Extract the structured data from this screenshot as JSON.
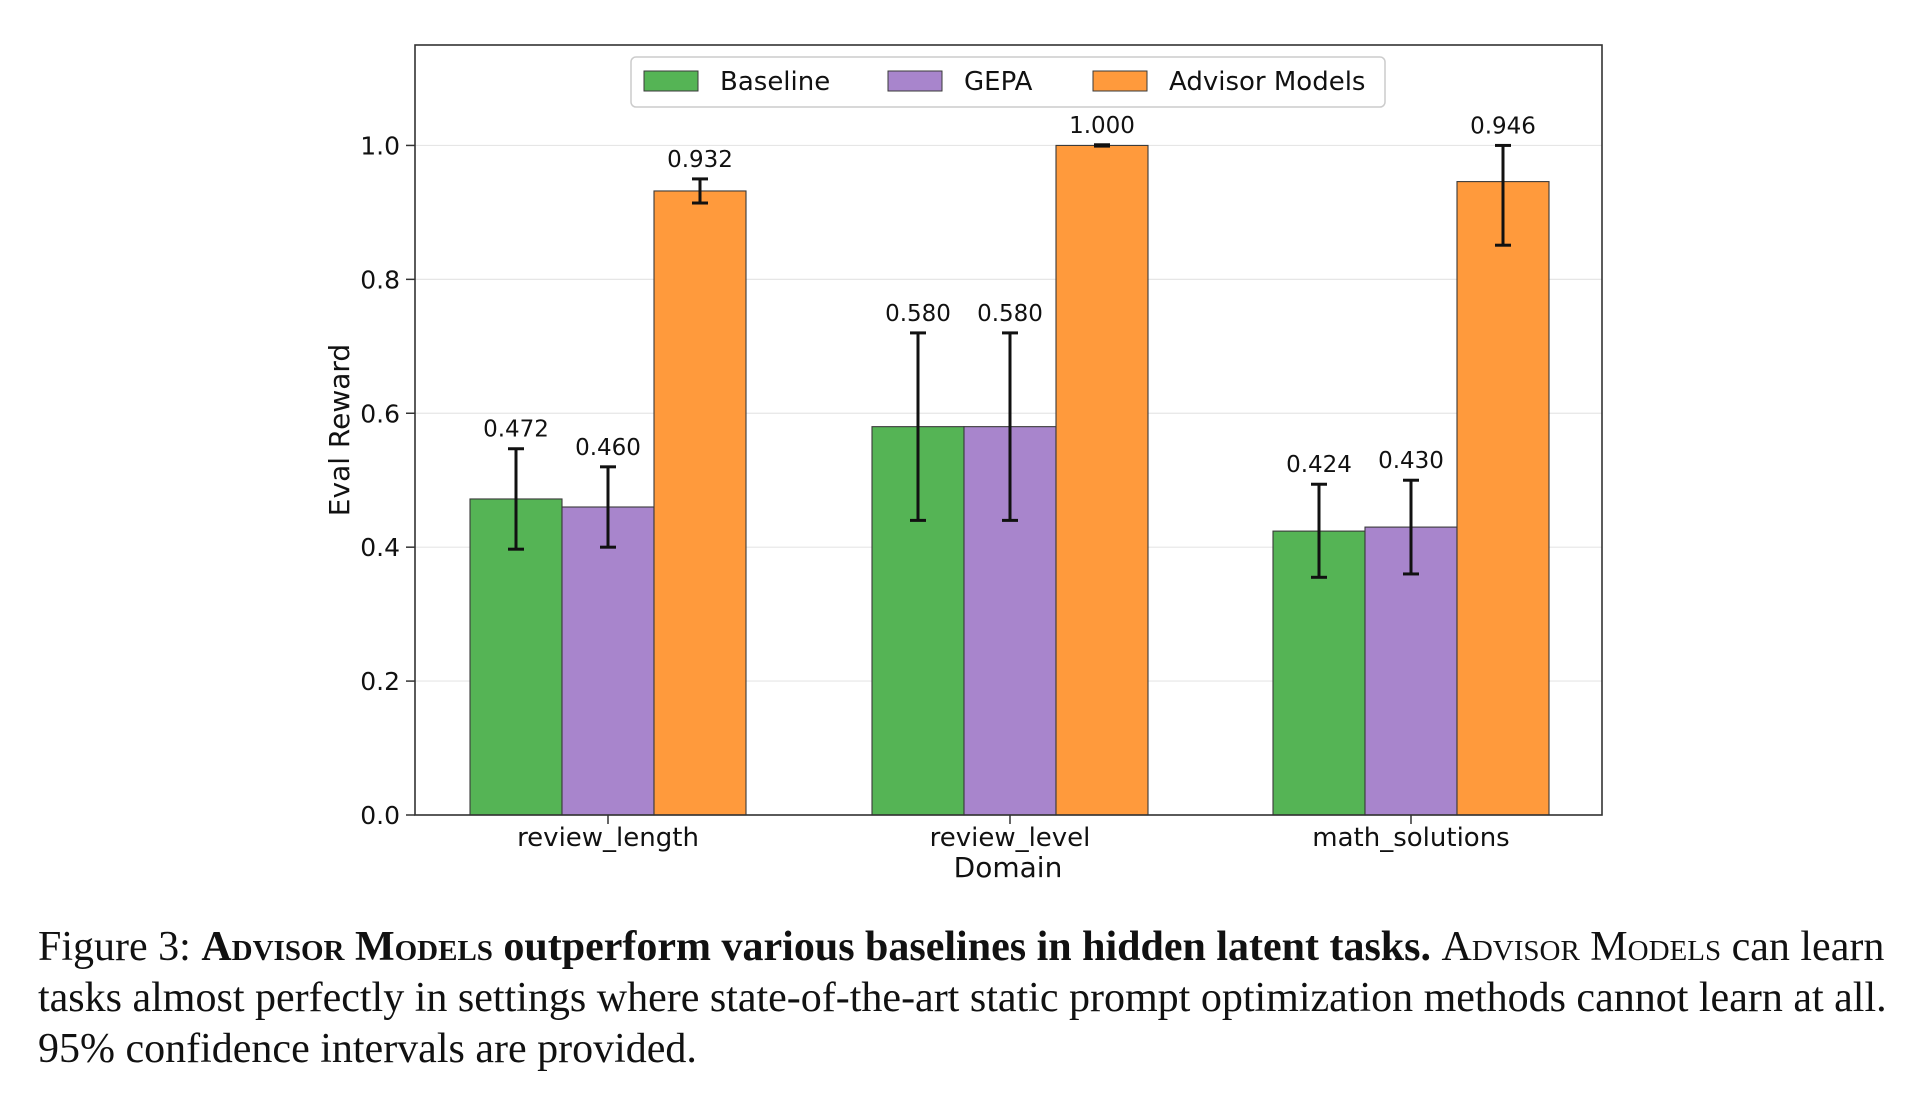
{
  "chart_data": {
    "type": "bar",
    "title": "",
    "xlabel": "Domain",
    "ylabel": "Eval Reward",
    "ylim": [
      0,
      1.15
    ],
    "yticks": [
      "0.0",
      "0.2",
      "0.4",
      "0.6",
      "0.8",
      "1.0"
    ],
    "ytick_values": [
      0,
      0.2,
      0.4,
      0.6,
      0.8,
      1.0
    ],
    "grid": true,
    "legend_position": "top-center",
    "categories": [
      "review_length",
      "review_level",
      "math_solutions"
    ],
    "series": [
      {
        "name": "Baseline",
        "color": "#55b455",
        "values": [
          0.472,
          0.58,
          0.424
        ],
        "labels": [
          "0.472",
          "0.580",
          "0.424"
        ],
        "ci_low": [
          0.397,
          0.44,
          0.355
        ],
        "ci_high": [
          0.547,
          0.72,
          0.494
        ]
      },
      {
        "name": "GEPA",
        "color": "#a885cc",
        "values": [
          0.46,
          0.58,
          0.43
        ],
        "labels": [
          "0.460",
          "0.580",
          "0.430"
        ],
        "ci_low": [
          0.4,
          0.44,
          0.36
        ],
        "ci_high": [
          0.52,
          0.72,
          0.5
        ]
      },
      {
        "name": "Advisor Models",
        "color": "#ff9a3c",
        "values": [
          0.932,
          1.0,
          0.946
        ],
        "labels": [
          "0.932",
          "1.000",
          "0.946"
        ],
        "ci_low": [
          0.914,
          0.999,
          0.851
        ],
        "ci_high": [
          0.95,
          1.001,
          1.0
        ]
      }
    ]
  },
  "caption": {
    "figure_label": "Figure 3:",
    "bold_sc": "Advisor Models",
    "bold_rest": "outperform various baselines in hidden latent tasks.",
    "body_sc": "Advisor Models",
    "body_rest": "can learn tasks almost perfectly in settings where state-of-the-art static prompt optimization methods cannot learn at all. 95% confidence intervals are provided."
  }
}
